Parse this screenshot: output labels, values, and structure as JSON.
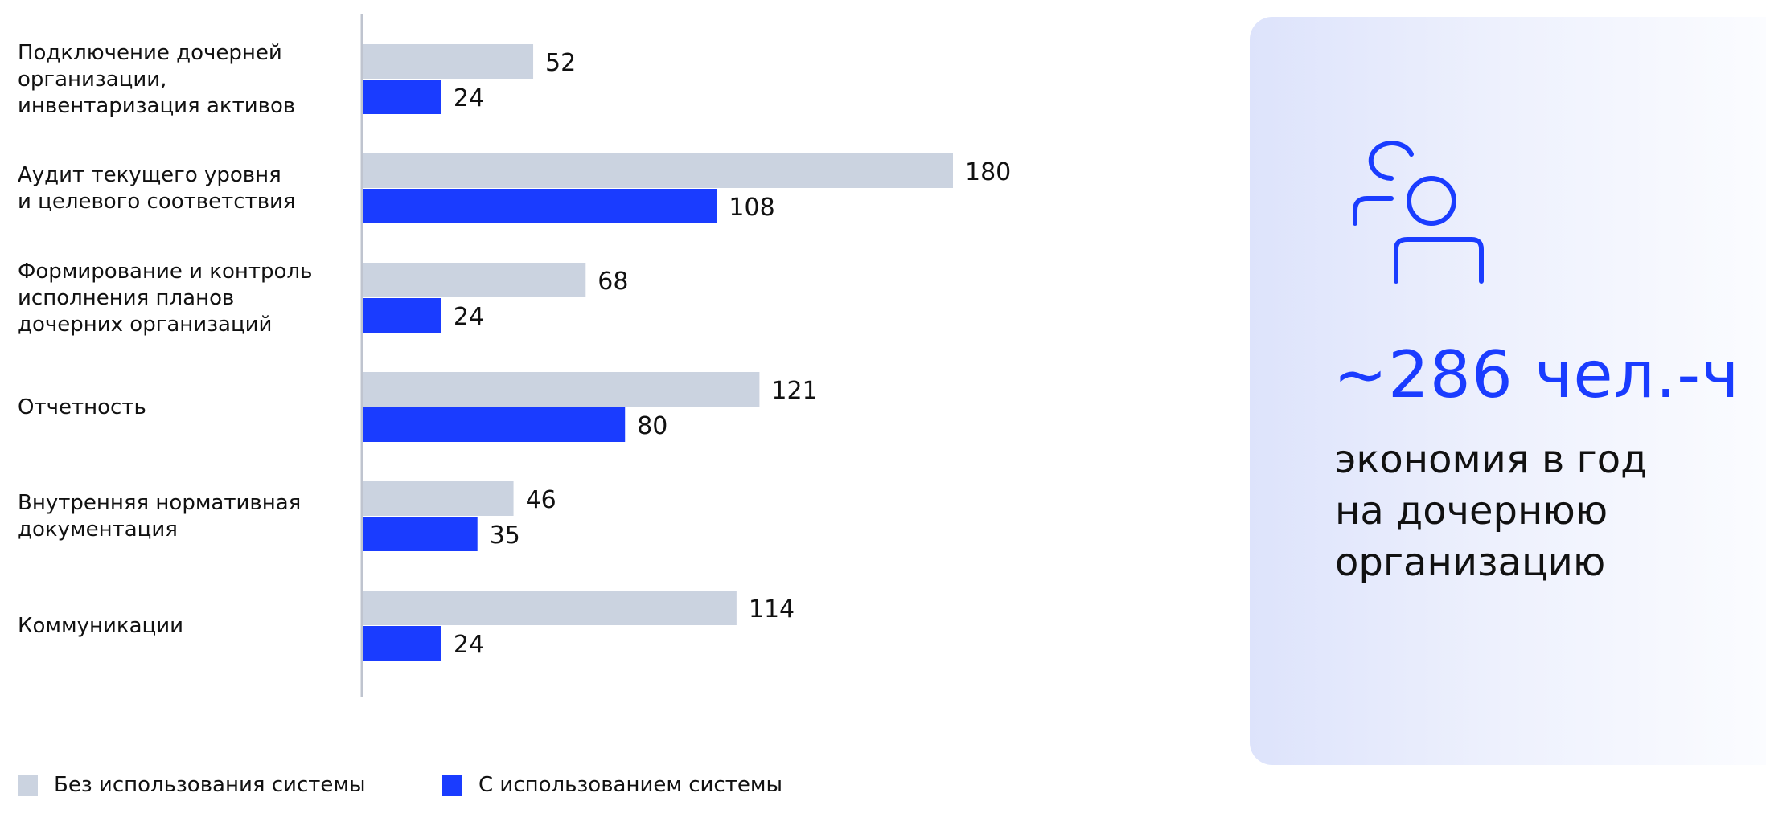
{
  "chart_data": {
    "type": "bar",
    "orientation": "horizontal",
    "categories": [
      [
        "Подключение дочерней",
        "организации,",
        "инвентаризация активов"
      ],
      [
        "Аудит текущего уровня",
        "и целевого соответствия"
      ],
      [
        "Формирование и контроль",
        "исполнения планов",
        "дочерних организаций"
      ],
      [
        "Отчетность"
      ],
      [
        "Внутренняя нормативная",
        "документация"
      ],
      [
        "Коммуникации"
      ]
    ],
    "series": [
      {
        "name": "Без использования системы",
        "color": "#cbd3e0",
        "values": [
          52,
          180,
          68,
          121,
          46,
          114
        ]
      },
      {
        "name": "С использованием системы",
        "color": "#1a3cff",
        "values": [
          24,
          108,
          24,
          80,
          35,
          24
        ]
      }
    ],
    "xlim": [
      0,
      180
    ],
    "grid": false,
    "legend": "bottom-left",
    "data_labels": true
  },
  "card": {
    "icon": "users-icon",
    "headline": "~286 чел.-ч",
    "subtext": [
      "экономия в год",
      "на дочернюю",
      "организацию"
    ],
    "accent": "#1a3cff"
  }
}
